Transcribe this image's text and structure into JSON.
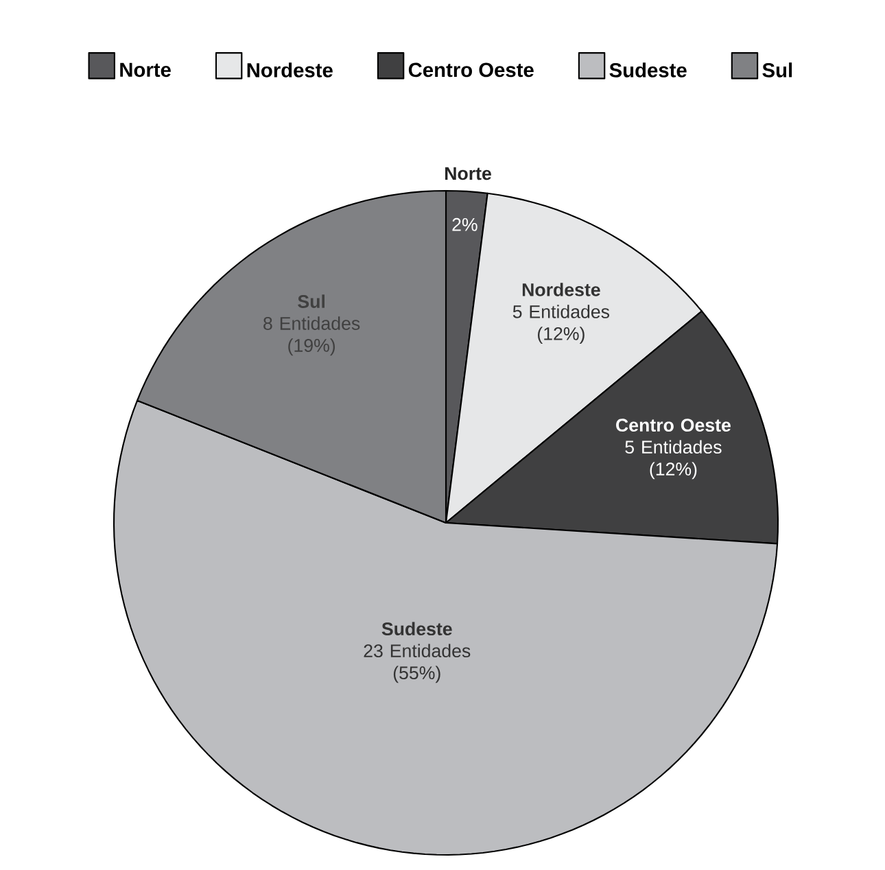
{
  "chart_data": {
    "type": "pie",
    "categories": [
      "Norte",
      "Nordeste",
      "Centro Oeste",
      "Sudeste",
      "Sul"
    ],
    "values": [
      2,
      12,
      12,
      55,
      19
    ],
    "value_labels": [
      "2%",
      "5 Entidades (12%)",
      "5 Entidades (12%)",
      "23 Entidades (55%)",
      "8 Entidades (19%)"
    ],
    "colors": [
      "#58585b",
      "#e6e7e8",
      "#404041",
      "#bcbdc0",
      "#808184"
    ],
    "legend": "top"
  }
}
